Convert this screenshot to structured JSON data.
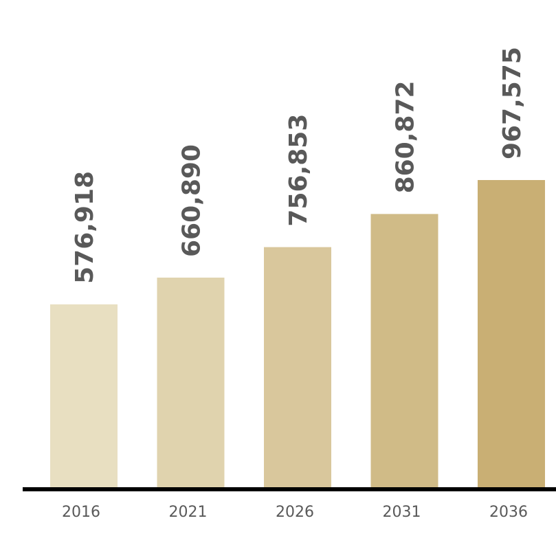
{
  "chart_data": {
    "type": "bar",
    "categories": [
      "2016",
      "2021",
      "2026",
      "2031",
      "2036"
    ],
    "values": [
      576918,
      660890,
      756853,
      860872,
      967575
    ],
    "value_labels": [
      "576,918",
      "660,890",
      "756,853",
      "860,872",
      "967,575"
    ],
    "bar_colors": [
      "#e8dfc1",
      "#e0d3ae",
      "#d9c79c",
      "#d0bb87",
      "#c9af74"
    ],
    "axis_color": "#000000",
    "text_color": "#595959",
    "title": "",
    "xlabel": "",
    "ylabel": "",
    "grid": false,
    "legend": "none"
  }
}
